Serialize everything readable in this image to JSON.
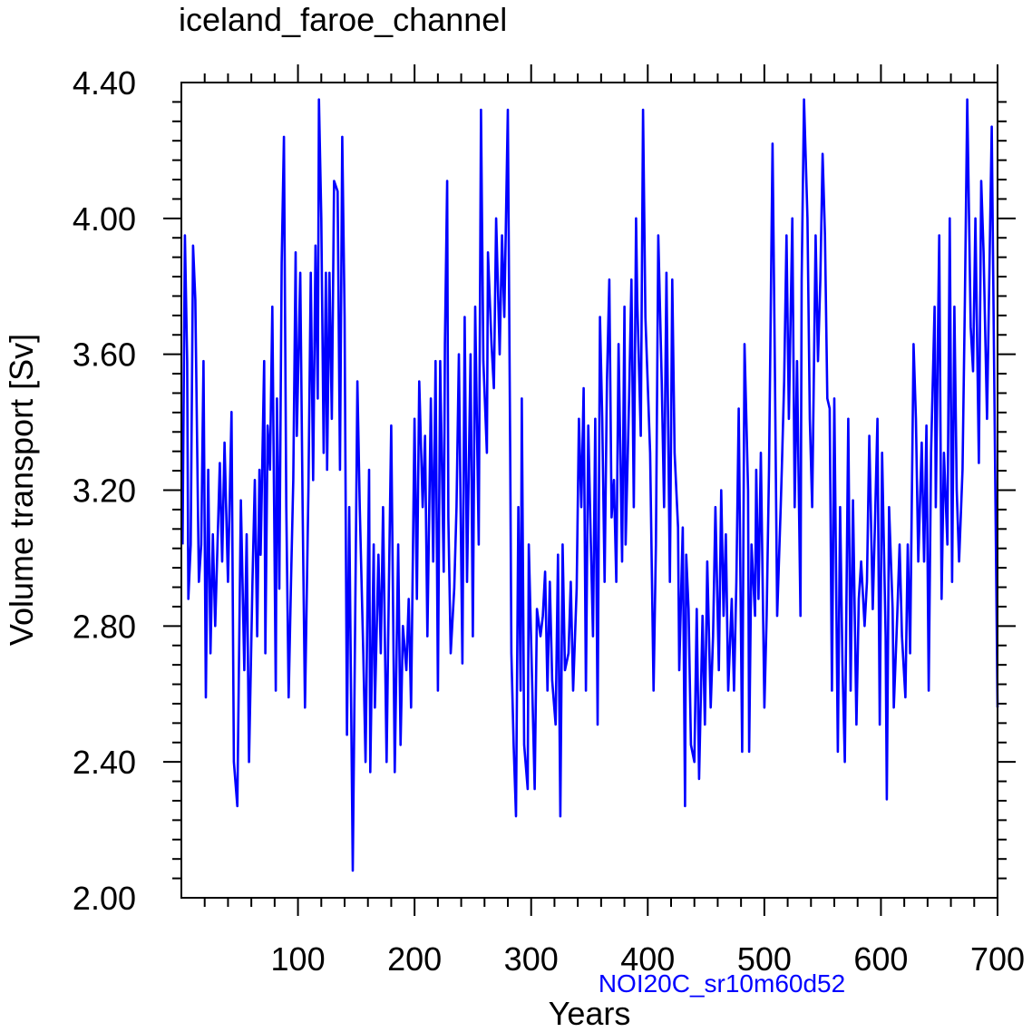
{
  "chart_data": {
    "type": "line",
    "title": "iceland_faroe_channel",
    "xlabel": "Years",
    "ylabel": "Volume transport [Sv]",
    "annotation": "NOI20C_sr10m60d52",
    "xlim": [
      0,
      700
    ],
    "ylim": [
      2.0,
      4.4
    ],
    "xticks": [
      100,
      200,
      300,
      400,
      500,
      600,
      700
    ],
    "xtick_labels": [
      "100",
      "200",
      "300",
      "400",
      "500",
      "600",
      "700"
    ],
    "yticks": [
      2.0,
      2.4,
      2.8,
      3.2,
      3.6,
      4.0,
      4.4
    ],
    "ytick_labels": [
      "2.00",
      "2.40",
      "2.80",
      "3.20",
      "3.60",
      "4.00",
      "4.40"
    ],
    "grid": false,
    "series": [
      {
        "name": "NOI20C_sr10m60d52",
        "color": "#0000ff",
        "x": [
          1,
          3,
          5,
          6,
          8,
          10,
          12,
          15,
          17,
          19,
          21,
          23,
          25,
          27,
          29,
          33,
          35,
          37,
          40,
          43,
          45,
          48,
          51,
          54,
          56,
          58,
          61,
          63,
          65,
          67,
          68,
          71,
          72,
          74,
          76,
          78,
          81,
          82,
          84,
          86,
          88,
          90,
          92,
          94,
          96,
          98,
          99,
          102,
          104,
          106,
          109,
          111,
          113,
          115,
          117,
          118,
          120,
          122,
          124,
          125,
          127,
          129,
          131,
          134,
          136,
          138,
          140,
          142,
          144,
          147,
          148,
          151,
          153,
          156,
          158,
          161,
          162,
          165,
          166,
          169,
          171,
          173,
          176,
          178,
          180,
          183,
          186,
          188,
          190,
          193,
          195,
          197,
          200,
          202,
          204,
          207,
          209,
          211,
          214,
          216,
          218,
          220,
          222,
          225,
          226,
          228,
          229,
          231,
          234,
          236,
          238,
          241,
          243,
          245,
          248,
          250,
          252,
          255,
          257,
          259,
          262,
          263,
          266,
          268,
          270,
          273,
          275,
          277,
          280,
          282,
          283,
          285,
          287,
          289,
          291,
          292,
          294,
          297,
          298,
          301,
          303,
          305,
          308,
          310,
          312,
          314,
          316,
          318,
          321,
          323,
          325,
          327,
          329,
          332,
          334,
          336,
          339,
          341,
          343,
          345,
          347,
          349,
          351,
          353,
          355,
          357,
          359,
          361,
          363,
          365,
          367,
          369,
          371,
          373,
          375,
          378,
          380,
          381,
          384,
          386,
          388,
          390,
          391,
          394,
          396,
          398,
          401,
          402,
          405,
          407,
          409,
          412,
          414,
          416,
          419,
          421,
          423,
          426,
          427,
          430,
          432,
          433,
          435,
          437,
          440,
          442,
          444,
          447,
          449,
          451,
          454,
          456,
          458,
          461,
          463,
          465,
          467,
          469,
          472,
          474,
          476,
          478,
          481,
          483,
          486,
          487,
          489,
          492,
          493,
          495,
          497,
          500,
          502,
          504,
          507,
          509,
          511,
          514,
          515,
          517,
          519,
          521,
          524,
          526,
          528,
          531,
          532,
          534,
          537,
          539,
          541,
          544,
          546,
          548,
          550,
          552,
          554,
          556,
          558,
          560,
          563,
          565,
          567,
          569,
          572,
          574,
          576,
          579,
          581,
          583,
          586,
          588,
          590,
          593,
          595,
          597,
          599,
          601,
          604,
          605,
          607,
          610,
          611,
          614,
          616,
          618,
          621,
          623,
          625,
          628,
          630,
          632,
          635,
          637,
          639,
          641,
          643,
          646,
          647,
          650,
          652,
          654,
          657,
          659,
          661,
          663,
          665,
          667,
          670,
          672,
          674,
          677,
          679,
          681,
          684,
          686,
          688,
          691,
          693,
          695,
          698,
          700
        ],
        "y": [
          3.04,
          3.95,
          3.58,
          2.88,
          3.04,
          3.92,
          3.76,
          2.93,
          3.04,
          3.58,
          2.59,
          3.26,
          2.72,
          3.07,
          2.8,
          3.28,
          2.99,
          3.34,
          2.93,
          3.43,
          2.4,
          2.27,
          3.17,
          2.67,
          3.07,
          2.4,
          2.93,
          3.23,
          2.77,
          3.26,
          3.01,
          3.58,
          2.72,
          3.39,
          3.26,
          3.74,
          2.61,
          3.47,
          2.91,
          3.87,
          4.24,
          3.15,
          2.59,
          2.93,
          3.23,
          3.9,
          3.36,
          3.84,
          3.15,
          2.56,
          3.2,
          3.84,
          3.23,
          3.92,
          3.47,
          4.35,
          4.0,
          3.31,
          3.84,
          3.26,
          3.84,
          3.41,
          4.11,
          4.08,
          3.26,
          4.24,
          3.71,
          2.48,
          3.15,
          2.08,
          2.43,
          3.52,
          3.15,
          2.72,
          2.4,
          3.26,
          2.37,
          3.04,
          2.56,
          3.01,
          2.72,
          3.15,
          2.4,
          2.93,
          3.39,
          2.37,
          3.04,
          2.45,
          2.8,
          2.67,
          2.88,
          2.56,
          3.41,
          2.88,
          3.52,
          3.15,
          3.36,
          2.77,
          3.47,
          2.99,
          3.58,
          2.61,
          3.58,
          2.96,
          3.63,
          4.11,
          3.12,
          2.72,
          2.91,
          3.15,
          3.6,
          2.69,
          3.71,
          2.93,
          3.6,
          2.77,
          3.74,
          3.04,
          4.32,
          3.58,
          3.31,
          3.9,
          3.63,
          3.5,
          4.0,
          3.6,
          3.95,
          3.71,
          4.32,
          3.31,
          2.72,
          2.45,
          2.24,
          3.15,
          2.61,
          3.47,
          2.45,
          2.32,
          3.04,
          2.61,
          2.32,
          2.85,
          2.77,
          2.83,
          2.96,
          2.61,
          2.93,
          2.64,
          2.51,
          3.01,
          2.24,
          3.04,
          2.67,
          2.72,
          2.93,
          2.61,
          2.91,
          3.41,
          3.15,
          3.5,
          2.61,
          3.39,
          3.07,
          2.77,
          3.41,
          2.51,
          3.71,
          3.41,
          2.93,
          3.52,
          3.82,
          3.12,
          3.23,
          2.93,
          3.63,
          2.99,
          3.74,
          3.04,
          3.47,
          3.82,
          3.15,
          4.0,
          3.76,
          3.36,
          4.32,
          3.71,
          3.41,
          3.31,
          2.61,
          3.04,
          3.95,
          3.52,
          3.15,
          3.84,
          2.93,
          3.82,
          3.31,
          3.09,
          2.67,
          3.09,
          2.27,
          3.01,
          2.85,
          2.45,
          2.4,
          2.85,
          2.35,
          2.83,
          2.51,
          2.99,
          2.56,
          2.77,
          3.15,
          2.67,
          3.2,
          2.83,
          3.07,
          2.61,
          2.88,
          2.61,
          2.93,
          3.44,
          2.43,
          3.63,
          3.2,
          2.43,
          3.04,
          2.83,
          3.26,
          2.88,
          3.31,
          2.56,
          2.83,
          3.26,
          4.22,
          3.58,
          2.83,
          3.15,
          3.26,
          3.52,
          3.95,
          3.41,
          4.0,
          3.15,
          3.58,
          2.83,
          3.82,
          4.35,
          4.0,
          3.41,
          3.15,
          3.95,
          3.58,
          3.82,
          4.19,
          3.95,
          3.47,
          3.44,
          2.61,
          3.47,
          2.43,
          3.15,
          2.69,
          2.4,
          3.41,
          2.61,
          3.17,
          2.51,
          2.88,
          2.99,
          2.8,
          2.93,
          3.36,
          2.85,
          3.12,
          3.41,
          2.51,
          3.31,
          2.77,
          2.29,
          3.15,
          2.85,
          2.56,
          2.83,
          3.04,
          2.77,
          2.59,
          3.04,
          2.72,
          3.63,
          3.41,
          2.99,
          3.34,
          2.99,
          3.39,
          2.61,
          3.31,
          3.74,
          3.15,
          3.95,
          2.88,
          3.31,
          3.04,
          4.0,
          2.93,
          3.74,
          3.2,
          2.99,
          3.26,
          3.76,
          4.35,
          3.68,
          3.55,
          4.0,
          3.28,
          4.11,
          3.9,
          3.41,
          3.84,
          4.27,
          3.25,
          2.56
        ]
      }
    ]
  }
}
